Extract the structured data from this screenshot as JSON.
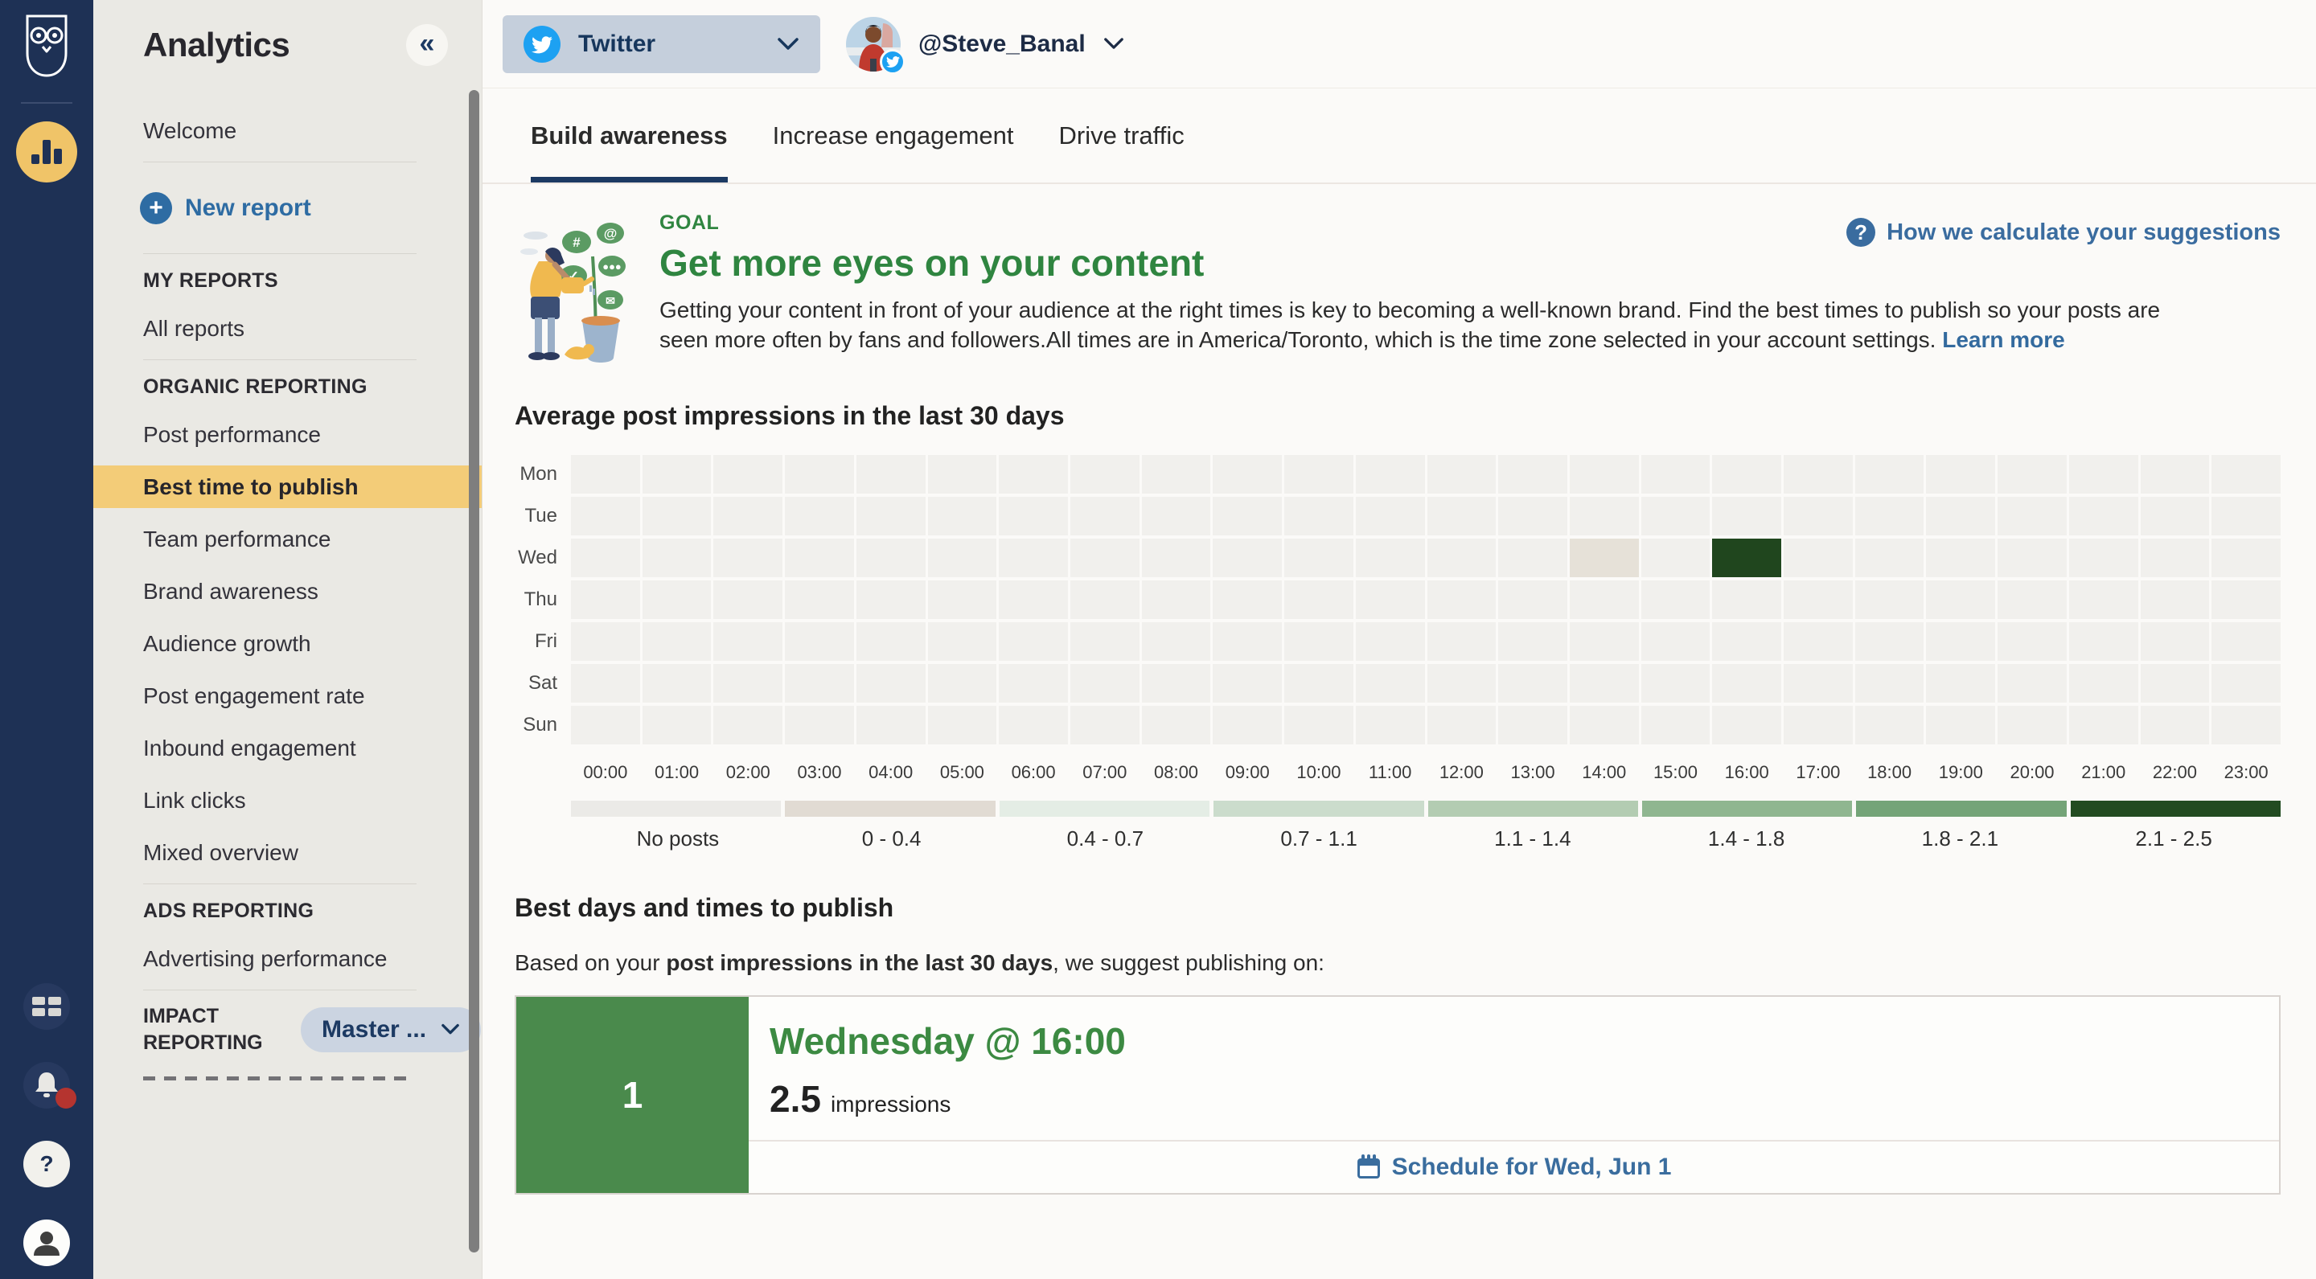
{
  "rail": {
    "icons": [
      "hootsuite-owl",
      "analytics",
      "apps-grid",
      "notifications-bell",
      "help",
      "account-avatar"
    ],
    "notification_badge": true
  },
  "sidebar": {
    "title": "Analytics",
    "collapse": "«",
    "rows": [
      {
        "type": "link",
        "label": "Welcome"
      },
      {
        "type": "divider"
      },
      {
        "type": "new-report",
        "label": "New report"
      },
      {
        "type": "divider"
      },
      {
        "type": "header",
        "label": "MY REPORTS"
      },
      {
        "type": "link",
        "label": "All reports"
      },
      {
        "type": "divider"
      },
      {
        "type": "header",
        "label": "ORGANIC REPORTING"
      },
      {
        "type": "link",
        "label": "Post performance"
      },
      {
        "type": "link",
        "label": "Best time to publish",
        "selected": true
      },
      {
        "type": "link",
        "label": "Team performance"
      },
      {
        "type": "link",
        "label": "Brand awareness"
      },
      {
        "type": "link",
        "label": "Audience growth"
      },
      {
        "type": "link",
        "label": "Post engagement rate"
      },
      {
        "type": "link",
        "label": "Inbound engagement"
      },
      {
        "type": "link",
        "label": "Link clicks"
      },
      {
        "type": "link",
        "label": "Mixed overview"
      },
      {
        "type": "divider"
      },
      {
        "type": "header",
        "label": "ADS REPORTING"
      },
      {
        "type": "link",
        "label": "Advertising performance"
      },
      {
        "type": "divider"
      },
      {
        "type": "picker-row",
        "label": "IMPACT REPORTING",
        "button": "Master ..."
      },
      {
        "type": "clipped"
      }
    ]
  },
  "topbar": {
    "network_selector": {
      "label": "Twitter",
      "icon": "twitter"
    },
    "account": {
      "handle": "@Steve_Banal",
      "badge_icon": "twitter"
    }
  },
  "tabs": [
    {
      "label": "Build awareness",
      "active": true
    },
    {
      "label": "Increase engagement",
      "active": false
    },
    {
      "label": "Drive traffic",
      "active": false
    }
  ],
  "goal": {
    "eyebrow": "GOAL",
    "title": "Get more eyes on your content",
    "body": "Getting your content in front of your audience at the right times is key to becoming a well-known brand. Find the best times to publish so your posts are seen more often by fans and followers.All times are in America/Toronto, which is the time zone selected in your account settings.",
    "learn_more": "Learn more",
    "help_link": "How we calculate your suggestions",
    "illustration_icons": [
      "hashtag",
      "at-sign",
      "check",
      "ellipsis",
      "envelope"
    ]
  },
  "heatmap_section": {
    "title": "Average post impressions in the last 30 days"
  },
  "chart_data": {
    "type": "heatmap",
    "title": "Average post impressions in the last 30 days",
    "rows": [
      "Mon",
      "Tue",
      "Wed",
      "Thu",
      "Fri",
      "Sat",
      "Sun"
    ],
    "cols": [
      "00:00",
      "01:00",
      "02:00",
      "03:00",
      "04:00",
      "05:00",
      "06:00",
      "07:00",
      "08:00",
      "09:00",
      "10:00",
      "11:00",
      "12:00",
      "13:00",
      "14:00",
      "15:00",
      "16:00",
      "17:00",
      "18:00",
      "19:00",
      "20:00",
      "21:00",
      "22:00",
      "23:00"
    ],
    "default_bucket": "No posts",
    "default_cell_color": "#f1f0ed",
    "cells": [
      {
        "row": "Wed",
        "col": "14:00",
        "bucket": "0 - 0.4",
        "color": "#e6e1d8"
      },
      {
        "row": "Wed",
        "col": "16:00",
        "bucket": "2.1 - 2.5",
        "value": 2.5,
        "color": "#20461e"
      }
    ],
    "legend": [
      {
        "label": "No posts",
        "color": "#ebeae7"
      },
      {
        "label": "0 - 0.4",
        "color": "#e1dbd3"
      },
      {
        "label": "0.4 - 0.7",
        "color": "#e4ede5"
      },
      {
        "label": "0.7 - 1.1",
        "color": "#cbdccc"
      },
      {
        "label": "1.1 - 1.4",
        "color": "#b3ccb2"
      },
      {
        "label": "1.4 - 1.8",
        "color": "#8fb690"
      },
      {
        "label": "1.8 - 2.1",
        "color": "#74a478"
      },
      {
        "label": "2.1 - 2.5",
        "color": "#224b21"
      }
    ],
    "legend_position": "bottom"
  },
  "best_times": {
    "title": "Best days and times to publish",
    "intro_prefix": "Based on your ",
    "intro_bold": "post impressions in the last 30 days",
    "intro_suffix": ", we suggest publishing on:",
    "suggestion": {
      "rank": "1",
      "when": "Wednesday @ 16:00",
      "value": "2.5",
      "unit": "impressions",
      "schedule_label": "Schedule for Wed, Jun 1"
    }
  },
  "colors": {
    "rail_bg": "#1e3155",
    "accent_yellow": "#f3cc78",
    "brand_navy": "#16365c",
    "link_blue": "#336a9e",
    "success_green": "#2f8540",
    "card_green": "#4a8a4c",
    "heat_dark_green": "#20461e",
    "twitter_blue": "#1da1f2",
    "notification_red": "#b5342f"
  }
}
